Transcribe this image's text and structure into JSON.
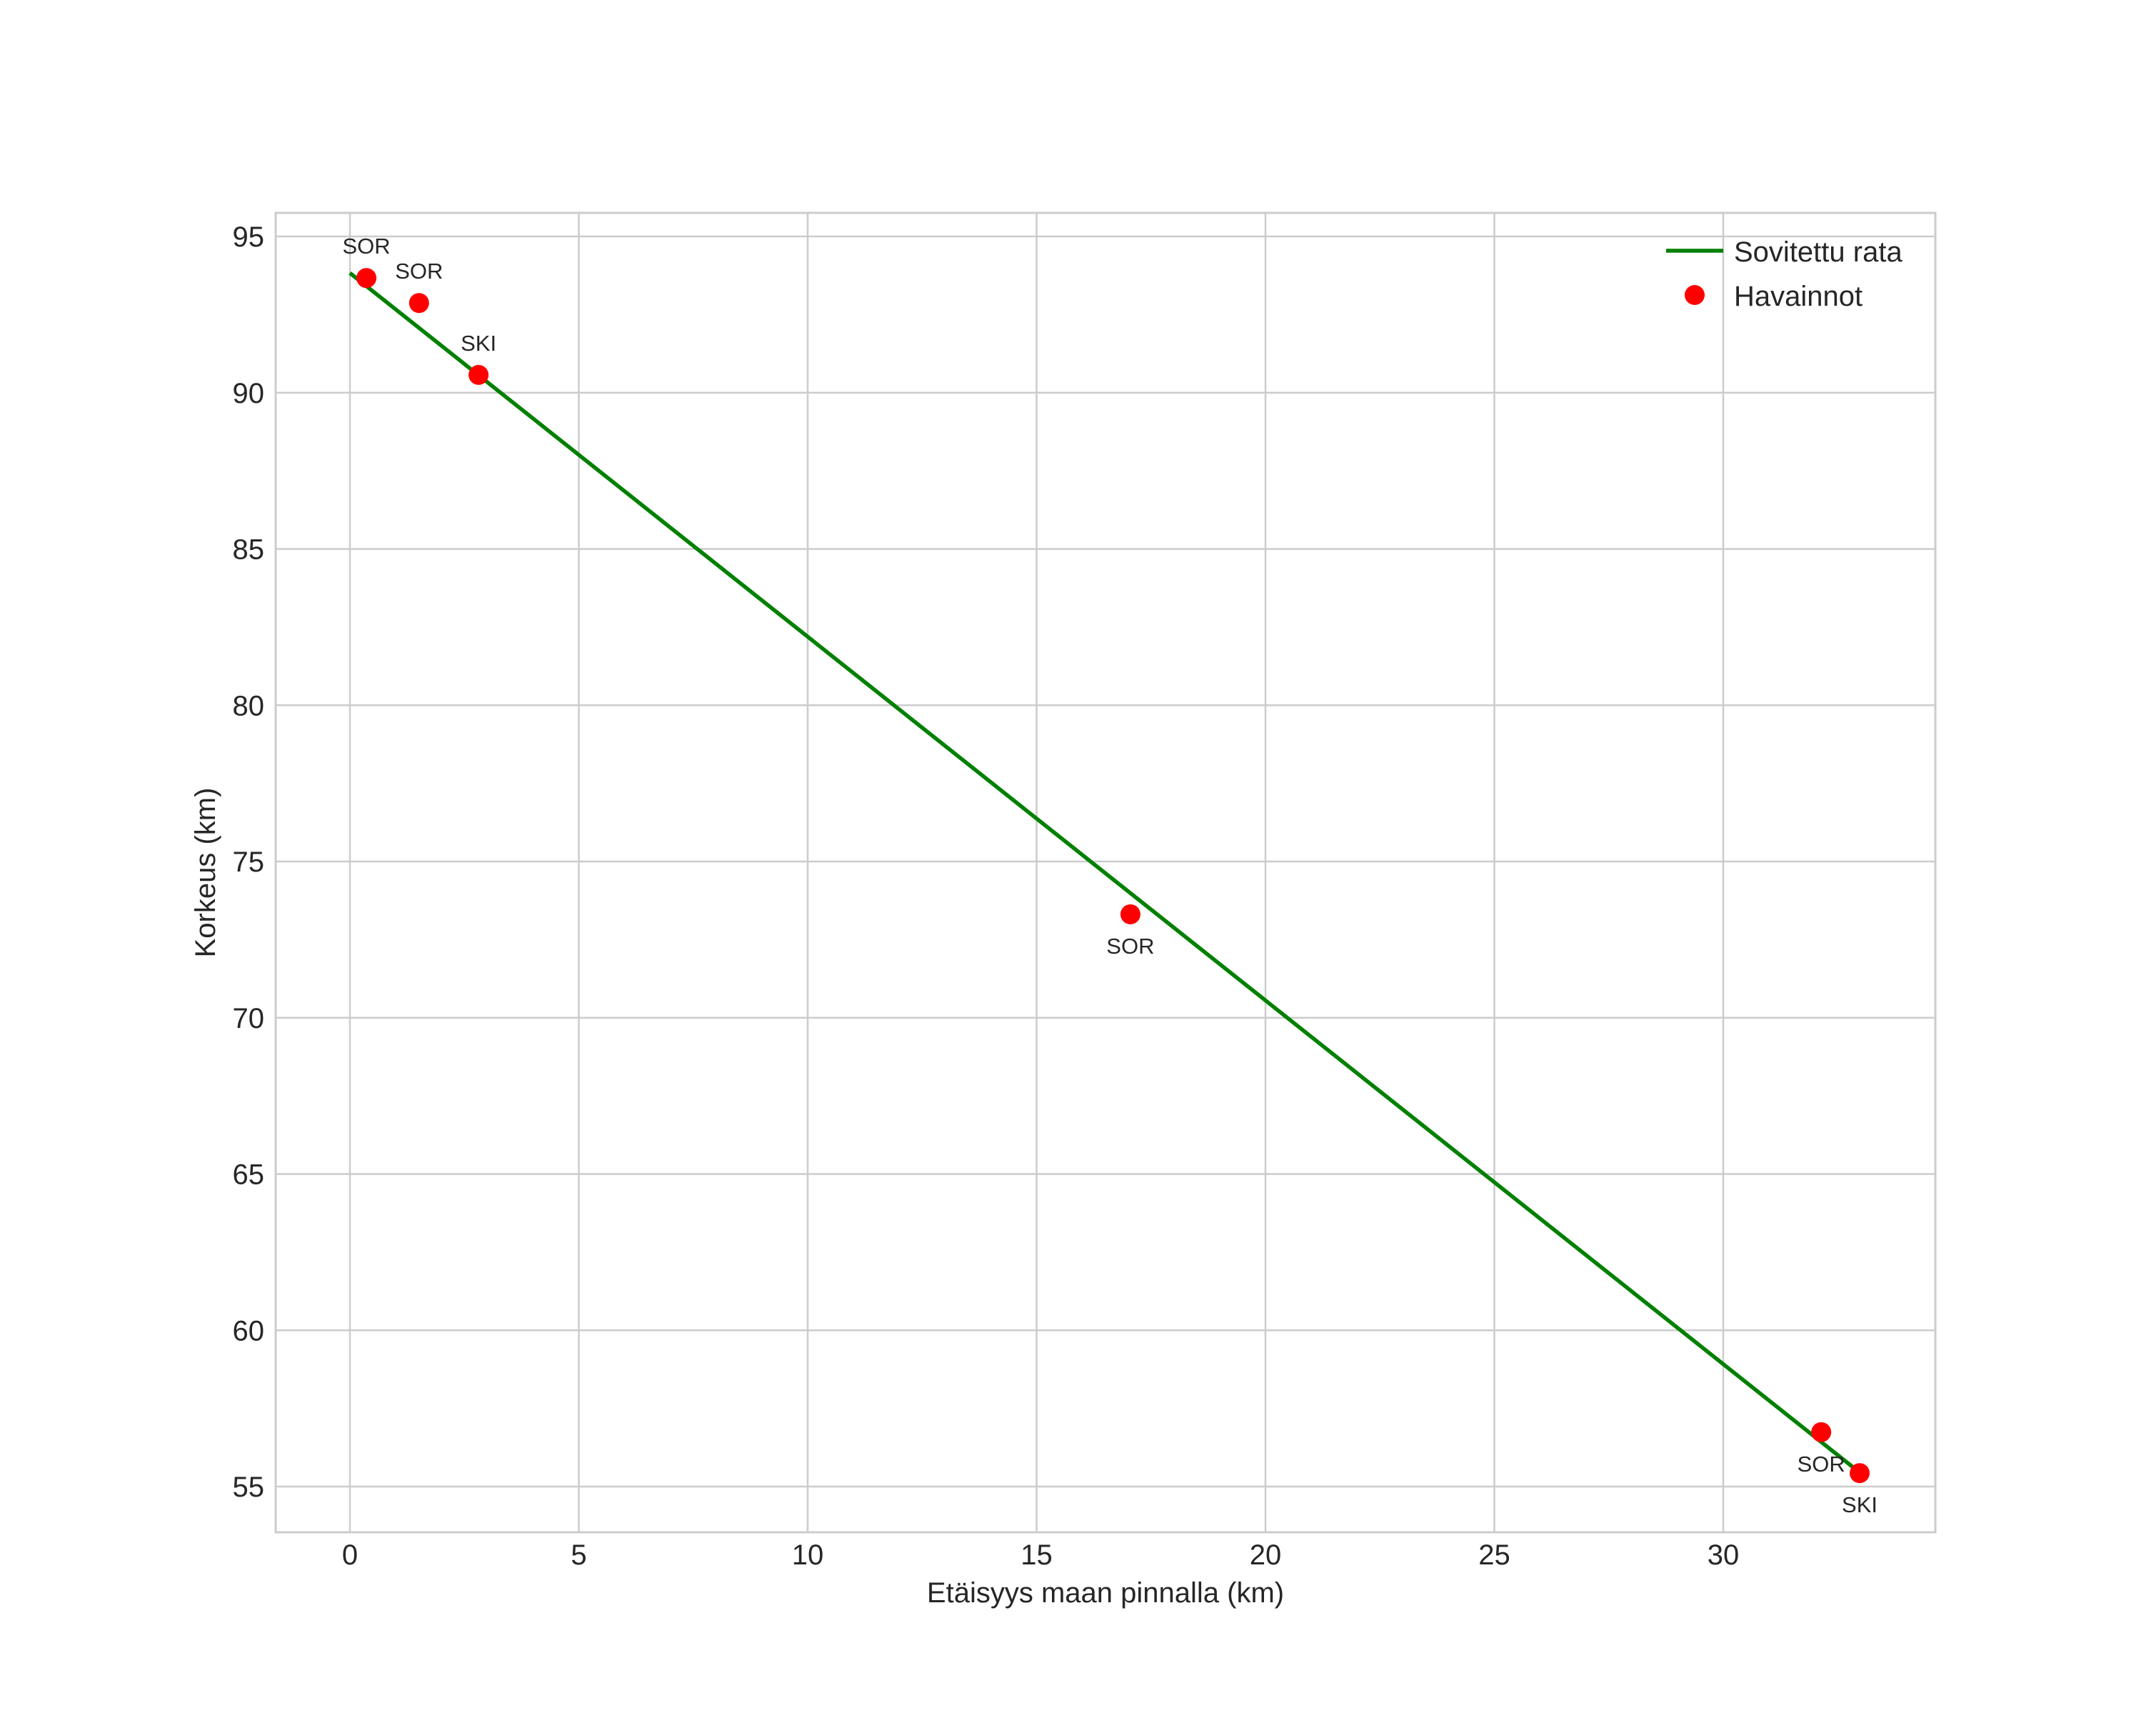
{
  "chart_data": {
    "type": "scatter",
    "title": "",
    "xlabel": "Etäisyys maan pinnalla (km)",
    "ylabel": "Korkeus (km)",
    "xlim": [
      -1.7,
      34.8
    ],
    "ylim": [
      53.6,
      95.8
    ],
    "xticks": [
      0,
      5,
      10,
      15,
      20,
      25,
      30
    ],
    "yticks": [
      55,
      60,
      65,
      70,
      75,
      80,
      85,
      90,
      95
    ],
    "grid": true,
    "legend_position": "upper right",
    "colors": {
      "fit_line": "#008000",
      "observations": "#ff0000",
      "grid": "#cccccc",
      "text": "#262626"
    },
    "series": [
      {
        "name": "Sovitettu rata",
        "kind": "line",
        "x": [
          0.0,
          32.98
        ],
        "y": [
          93.83,
          55.45
        ]
      },
      {
        "name": "Havainnot",
        "kind": "scatter",
        "x": [
          0.36,
          1.51,
          2.81,
          17.05,
          32.14,
          32.98
        ],
        "y": [
          93.67,
          92.87,
          90.57,
          73.31,
          56.74,
          55.43
        ],
        "labels": [
          "SOR",
          "SOR",
          "SKI",
          "SOR",
          "SOR",
          "SKI"
        ]
      }
    ],
    "annotations": [
      {
        "text": "SOR",
        "x": 0.36,
        "y": 93.67,
        "position": "above"
      },
      {
        "text": "SOR",
        "x": 1.51,
        "y": 92.87,
        "position": "above"
      },
      {
        "text": "SKI",
        "x": 2.81,
        "y": 90.57,
        "position": "above"
      },
      {
        "text": "SOR",
        "x": 17.05,
        "y": 73.31,
        "position": "below"
      },
      {
        "text": "SOR",
        "x": 32.14,
        "y": 56.74,
        "position": "below"
      },
      {
        "text": "SKI",
        "x": 32.98,
        "y": 55.43,
        "position": "below"
      }
    ]
  },
  "legend": {
    "items": [
      {
        "label": "Sovitettu rata",
        "marker": "line"
      },
      {
        "label": "Havainnot",
        "marker": "dot"
      }
    ]
  }
}
